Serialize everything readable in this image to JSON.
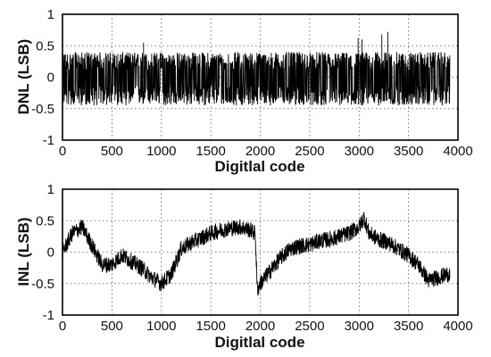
{
  "chart_data": [
    {
      "type": "line",
      "title": "",
      "xlabel": "Digitlal code",
      "ylabel": "DNL (LSB)",
      "xlim": [
        0,
        4000
      ],
      "ylim": [
        -1,
        1
      ],
      "x_ticks": [
        "0",
        "500",
        "1000",
        "1500",
        "2000",
        "2500",
        "3000",
        "3500",
        "4000"
      ],
      "y_ticks": [
        "1",
        "0.5",
        "0",
        "-0.5",
        "-1"
      ],
      "grid": true,
      "legend": "none",
      "x_range": [
        0,
        3920
      ],
      "baseline": 0,
      "noise_band": [
        -0.45,
        0.4
      ],
      "spikes": [
        {
          "x": 820,
          "y": 0.55
        },
        {
          "x": 2990,
          "y": 0.62
        },
        {
          "x": 3030,
          "y": 0.6
        },
        {
          "x": 3230,
          "y": 0.68
        },
        {
          "x": 3290,
          "y": 0.72
        }
      ],
      "series": [
        {
          "x": [
            0,
            200,
            400,
            600,
            800,
            1000,
            1200,
            1400,
            1600,
            1800,
            2000,
            2200,
            2400,
            2600,
            2800,
            3000,
            3200,
            3400,
            3600,
            3800,
            3920
          ],
          "y_center": [
            0,
            0,
            0,
            0,
            0,
            0,
            0,
            0,
            0,
            0,
            0,
            0,
            0,
            0,
            0,
            0,
            0,
            0,
            0,
            0,
            0
          ]
        }
      ]
    },
    {
      "type": "line",
      "title": "",
      "xlabel": "Digitlal code",
      "ylabel": "INL (LSB)",
      "xlim": [
        0,
        4000
      ],
      "ylim": [
        -1,
        1
      ],
      "x_ticks": [
        "0",
        "500",
        "1000",
        "1500",
        "2000",
        "2500",
        "3000",
        "3500",
        "4000"
      ],
      "y_ticks": [
        "1",
        "0.5",
        "0",
        "-0.5",
        "-1"
      ],
      "grid": true,
      "legend": "none",
      "x_range": [
        0,
        3920
      ],
      "noise_amplitude": 0.13,
      "series": [
        {
          "x": [
            0,
            100,
            200,
            300,
            400,
            500,
            600,
            700,
            800,
            900,
            1000,
            1100,
            1200,
            1300,
            1400,
            1500,
            1600,
            1700,
            1800,
            1900,
            1950,
            1970,
            2000,
            2100,
            2200,
            2300,
            2400,
            2500,
            2600,
            2700,
            2800,
            2900,
            3000,
            3050,
            3100,
            3200,
            3300,
            3400,
            3500,
            3600,
            3700,
            3800,
            3900
          ],
          "y": [
            0.0,
            0.3,
            0.4,
            0.1,
            -0.2,
            -0.2,
            -0.05,
            -0.15,
            -0.25,
            -0.4,
            -0.5,
            -0.35,
            0.05,
            0.15,
            0.22,
            0.3,
            0.35,
            0.38,
            0.4,
            0.35,
            0.3,
            -0.6,
            -0.5,
            -0.3,
            -0.1,
            0.05,
            0.1,
            0.12,
            0.18,
            0.2,
            0.25,
            0.3,
            0.4,
            0.55,
            0.3,
            0.2,
            0.15,
            0.05,
            -0.05,
            -0.2,
            -0.45,
            -0.4,
            -0.35
          ]
        }
      ]
    }
  ]
}
